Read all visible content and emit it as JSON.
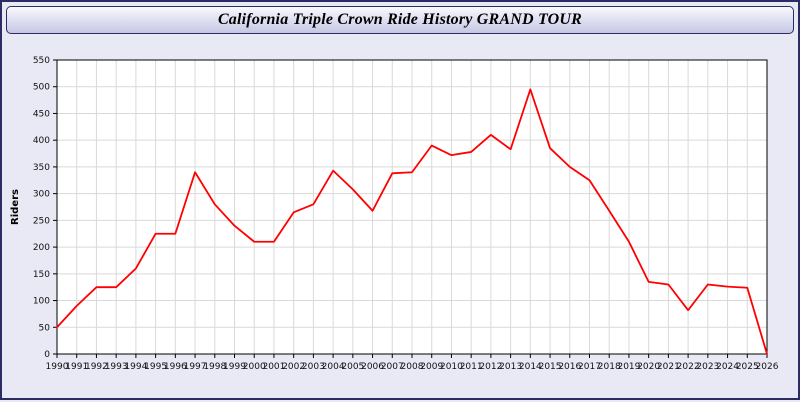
{
  "header": {
    "title": "California Triple Crown Ride History GRAND TOUR"
  },
  "chart_data": {
    "type": "line",
    "title": "California Triple Crown Ride History GRAND TOUR",
    "xlabel": "",
    "ylabel": "Riders",
    "ylim": [
      0,
      550
    ],
    "ytick_step": 50,
    "grid": true,
    "legend": "none",
    "line_color": "#ff0000",
    "plot_background": "#ffffff",
    "page_background": "#e9e9f6",
    "x": [
      1990,
      1991,
      1992,
      1993,
      1994,
      1995,
      1996,
      1997,
      1998,
      1999,
      2000,
      2001,
      2002,
      2003,
      2004,
      2005,
      2006,
      2007,
      2008,
      2009,
      2010,
      2011,
      2012,
      2013,
      2014,
      2015,
      2016,
      2017,
      2018,
      2019,
      2020,
      2021,
      2022,
      2023,
      2024,
      2025,
      2026
    ],
    "values": [
      50,
      90,
      125,
      125,
      160,
      225,
      225,
      340,
      280,
      240,
      210,
      210,
      265,
      280,
      343,
      308,
      268,
      338,
      340,
      390,
      372,
      378,
      410,
      383,
      495,
      385,
      350,
      325,
      268,
      210,
      135,
      130,
      82,
      130,
      126,
      124,
      0
    ]
  }
}
